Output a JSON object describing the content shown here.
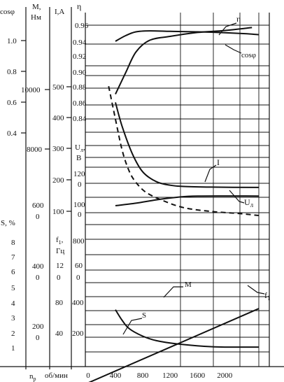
{
  "chart_data": {
    "type": "line",
    "grid": true,
    "legend": "none (curves labelled inline)",
    "x_axis": {
      "label": "n",
      "label_sub": "p",
      "unit": "об/мин",
      "ticks": [
        "0",
        "400",
        "800",
        "1200",
        "1600",
        "2000"
      ],
      "range": [
        0,
        2550
      ]
    },
    "scales": [
      {
        "id": "cosphi",
        "title": "cosφ",
        "ticks": [
          "1.0",
          "0.8",
          "0.6",
          "0.4"
        ]
      },
      {
        "id": "torque",
        "title": "М,",
        "title2": "Нм",
        "ticks": [
          "10000",
          "8000",
          "600",
          "0",
          "400",
          "0",
          "200",
          "0"
        ]
      },
      {
        "id": "current",
        "title": "I,A",
        "ticks": [
          "500",
          "400",
          "300",
          "200",
          "100"
        ]
      },
      {
        "id": "slip",
        "title": "S, %",
        "ticks": [
          "8",
          "7",
          "6",
          "5",
          "4",
          "3",
          "2",
          "1"
        ]
      },
      {
        "id": "efficiency",
        "title": "η",
        "ticks": [
          "0.96",
          "0.94",
          "0.92",
          "0.90",
          "0.88",
          "0.86",
          "0.84"
        ]
      },
      {
        "id": "voltage",
        "title": "U",
        "title_sub": "л",
        "title_after": ",",
        "title2": "В",
        "ticks": [
          "120",
          "0",
          "100",
          "0",
          "800"
        ]
      },
      {
        "id": "frequency",
        "title": "f",
        "title_sub": "1",
        "title_after": ",",
        "title2": "Гц",
        "ticks": [
          "12",
          "0",
          "60",
          "0",
          "80",
          "400",
          "40",
          "200"
        ]
      }
    ],
    "series": [
      {
        "name": "η",
        "points": [
          [
            400,
            0.943
          ],
          [
            550,
            0.949
          ],
          [
            700,
            0.953
          ],
          [
            900,
            0.954
          ],
          [
            1200,
            0.9535
          ],
          [
            1600,
            0.953
          ],
          [
            2000,
            0.952
          ],
          [
            2300,
            0.951
          ],
          [
            2500,
            0.95
          ]
        ]
      },
      {
        "name": "cosφ",
        "points": [
          [
            400,
            0.871
          ],
          [
            550,
            0.893
          ],
          [
            700,
            0.914
          ],
          [
            900,
            0.926
          ],
          [
            1200,
            0.93
          ],
          [
            1600,
            0.934
          ],
          [
            2000,
            0.936
          ],
          [
            2400,
            0.939
          ]
        ]
      },
      {
        "name": "I",
        "points": [
          [
            400,
            455
          ],
          [
            500,
            378
          ],
          [
            650,
            292
          ],
          [
            800,
            236
          ],
          [
            1000,
            205
          ],
          [
            1200,
            194
          ],
          [
            1400,
            190
          ],
          [
            1800,
            188
          ],
          [
            2500,
            187
          ]
        ]
      },
      {
        "name": "U",
        "name_sub": "л",
        "points": [
          [
            400,
            80
          ],
          [
            700,
            86
          ],
          [
            1000,
            94
          ],
          [
            1300,
            100
          ],
          [
            1600,
            103
          ],
          [
            2500,
            103
          ]
        ]
      },
      {
        "name": "M",
        "style": "dashed",
        "points": [
          [
            300,
            10100
          ],
          [
            400,
            7500
          ],
          [
            500,
            5000
          ],
          [
            600,
            3400
          ],
          [
            700,
            2500
          ],
          [
            850,
            1700
          ],
          [
            1100,
            1050
          ],
          [
            1400,
            500
          ],
          [
            1800,
            200
          ],
          [
            2200,
            40
          ],
          [
            2500,
            -120
          ]
        ]
      },
      {
        "name": "f",
        "name_sub": "1",
        "points": [
          [
            0,
            10
          ],
          [
            2500,
            82
          ]
        ]
      },
      {
        "name": "S",
        "points": [
          [
            400,
            3.62
          ],
          [
            500,
            2.95
          ],
          [
            600,
            2.45
          ],
          [
            800,
            1.98
          ],
          [
            1000,
            1.7
          ],
          [
            1300,
            1.5
          ],
          [
            1700,
            1.35
          ],
          [
            2000,
            1.3
          ],
          [
            2500,
            1.3
          ]
        ]
      }
    ]
  }
}
